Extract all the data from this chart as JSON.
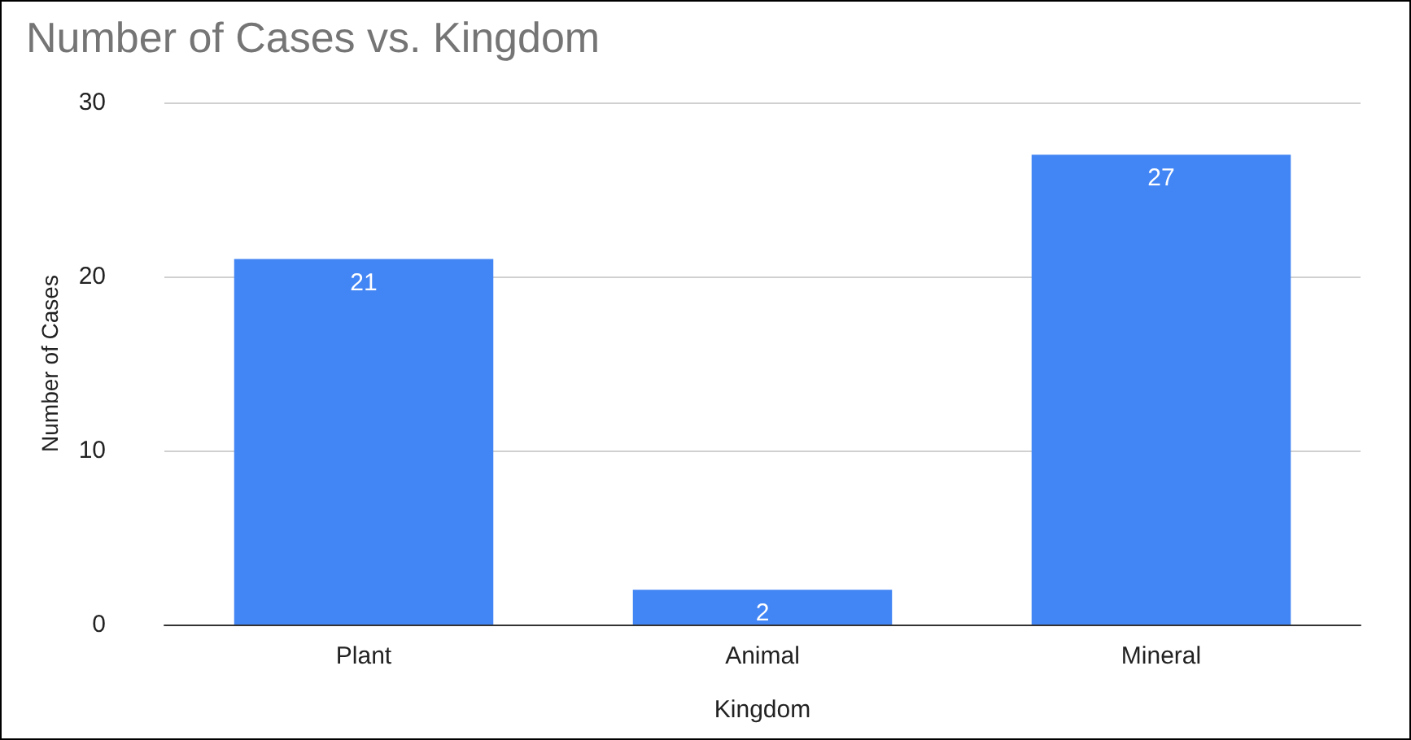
{
  "chart_data": {
    "type": "bar",
    "title": "Number of Cases vs. Kingdom",
    "xlabel": "Kingdom",
    "ylabel": "Number of Cases",
    "categories": [
      "Plant",
      "Animal",
      "Mineral"
    ],
    "values": [
      21,
      2,
      27
    ],
    "color": "#4285f4",
    "ylim": [
      0,
      30
    ],
    "yticks": [
      0,
      10,
      20,
      30
    ],
    "grid": "y",
    "data_labels": true
  }
}
